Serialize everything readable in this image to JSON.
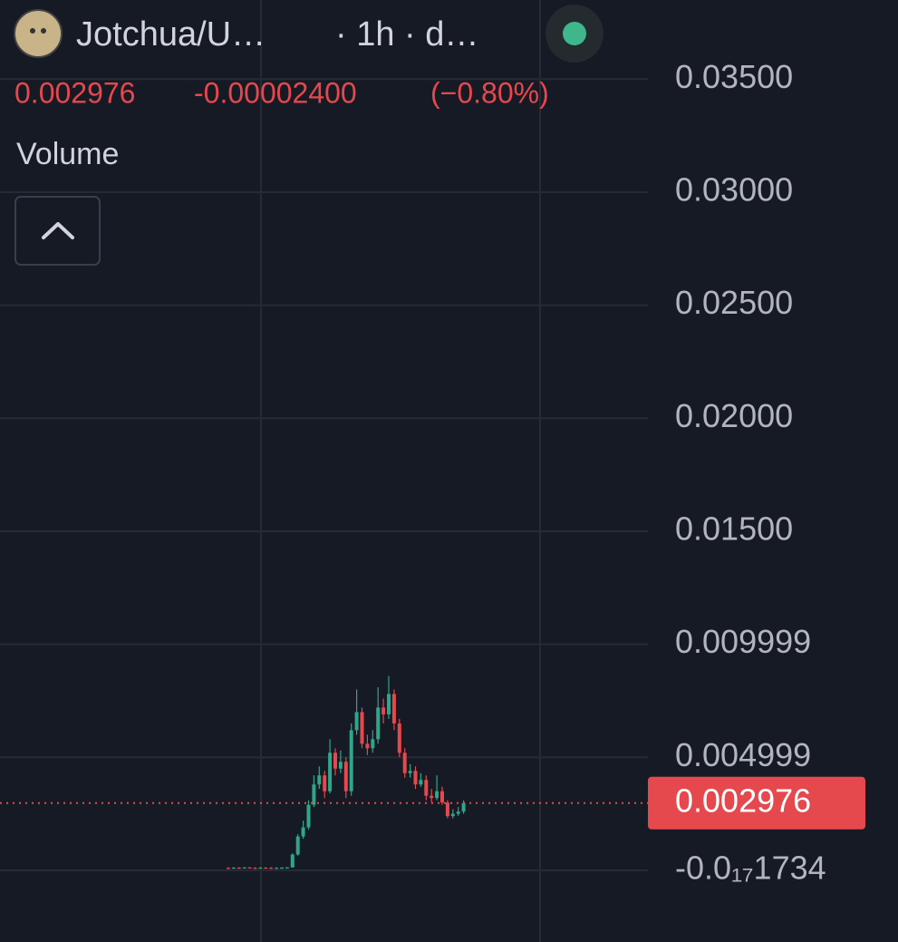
{
  "header": {
    "symbol": "Jotchua/U…",
    "interval": "· 1h · d…",
    "change": "-0.00002400",
    "change_percent": "(−0.80%)",
    "indicator": "Volume"
  },
  "chart_data": {
    "type": "candlestick",
    "last_price": 0.002976,
    "up_color": "#2fa58a",
    "down_color": "#e5484d",
    "ylim": [
      -0.00317,
      0.0385
    ],
    "yticks": [
      {
        "value": 0.035,
        "label": "0.03500"
      },
      {
        "value": 0.03,
        "label": "0.03000"
      },
      {
        "value": 0.025,
        "label": "0.02500"
      },
      {
        "value": 0.02,
        "label": "0.02000"
      },
      {
        "value": 0.015,
        "label": "0.01500"
      },
      0.009999,
      0.004999,
      {
        "value": -1.734e-18,
        "label": "-0.0₁₇1734"
      }
    ],
    "grid": true,
    "open": [
      0.00011,
      0.0001,
      0.00012,
      0.00011,
      0.00013,
      0.00011,
      0.0001,
      0.00012,
      0.00011,
      0.0001,
      0.00011,
      0.00012,
      0.00013,
      0.0007,
      0.0015,
      0.0019,
      0.0029,
      0.0038,
      0.0042,
      0.0035,
      0.0052,
      0.0045,
      0.0048,
      0.0035,
      0.0062,
      0.007,
      0.0056,
      0.0054,
      0.0058,
      0.0072,
      0.0069,
      0.0078,
      0.0065,
      0.0052,
      0.0043,
      0.0044,
      0.0038,
      0.004,
      0.0033,
      0.0032,
      0.0035,
      0.003,
      0.0024,
      0.0025,
      0.0026
    ],
    "high": [
      0.00014,
      0.00014,
      0.00014,
      0.00014,
      0.00014,
      0.00014,
      0.00014,
      0.00014,
      0.00014,
      0.00014,
      0.00014,
      0.00014,
      0.00075,
      0.0016,
      0.0022,
      0.0031,
      0.0042,
      0.0046,
      0.0044,
      0.0058,
      0.0054,
      0.0053,
      0.005,
      0.0065,
      0.008,
      0.0072,
      0.006,
      0.0062,
      0.0081,
      0.0076,
      0.0086,
      0.008,
      0.0067,
      0.0054,
      0.0047,
      0.0046,
      0.0043,
      0.0042,
      0.0036,
      0.0042,
      0.0037,
      0.0031,
      0.0027,
      0.0028,
      0.0031
    ],
    "low": [
      8e-05,
      8e-05,
      8e-05,
      8e-05,
      8e-05,
      8e-05,
      8e-05,
      8e-05,
      8e-05,
      8e-05,
      8e-05,
      8e-05,
      0.00012,
      0.00065,
      0.0014,
      0.0018,
      0.0028,
      0.0036,
      0.0032,
      0.0034,
      0.0042,
      0.0043,
      0.0032,
      0.0033,
      0.006,
      0.0054,
      0.0051,
      0.0052,
      0.0056,
      0.0065,
      0.0067,
      0.0062,
      0.005,
      0.0041,
      0.0041,
      0.0036,
      0.0037,
      0.0031,
      0.003,
      0.0031,
      0.0029,
      0.0023,
      0.0023,
      0.0024,
      0.0025
    ],
    "close": [
      0.0001,
      0.00012,
      0.00011,
      0.00013,
      0.00011,
      0.0001,
      0.00012,
      0.00011,
      0.0001,
      0.00011,
      0.00012,
      0.00013,
      0.0007,
      0.0015,
      0.0019,
      0.0029,
      0.0038,
      0.0042,
      0.0035,
      0.0052,
      0.0045,
      0.0048,
      0.0035,
      0.0062,
      0.007,
      0.0056,
      0.0054,
      0.0058,
      0.0072,
      0.0069,
      0.0078,
      0.0065,
      0.0052,
      0.0043,
      0.0044,
      0.0038,
      0.004,
      0.0033,
      0.0032,
      0.0035,
      0.003,
      0.0024,
      0.0025,
      0.0026,
      0.002976
    ]
  }
}
